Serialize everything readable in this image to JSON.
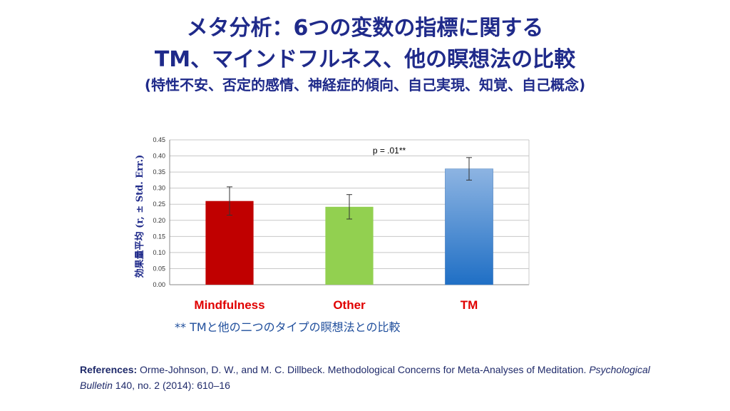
{
  "title": {
    "line1": "メタ分析：6つの変数の指標に関する",
    "line2": "TM、マインドフルネス、他の瞑想法の比較",
    "line3": "(特性不安、否定的感情、神経症的傾向、自己実現、知覚、自己概念)"
  },
  "chart_data": {
    "type": "bar",
    "categories": [
      "Mindfulness",
      "Other",
      "TM"
    ],
    "values": [
      0.26,
      0.242,
      0.36
    ],
    "errors": [
      0.044,
      0.038,
      0.035
    ],
    "bar_colors": [
      "#c00000",
      "#92d050",
      "#5b9bd5"
    ],
    "category_label_colors": [
      "#e00000",
      "#e00000",
      "#e00000"
    ],
    "ylabel": "効果量平均 (r, ± Std. Err.)",
    "ylim": [
      0,
      0.45
    ],
    "yticks": [
      "0.00",
      "0.05",
      "0.10",
      "0.15",
      "0.20",
      "0.25",
      "0.30",
      "0.35",
      "0.40",
      "0.45"
    ],
    "grid": true,
    "annotation": "p = .01**"
  },
  "footnote": "** TMと他の二つのタイプの瞑想法との比較",
  "references": {
    "label": "References:",
    "text1": " Orme-Johnson, D. W., and M. C. Dillbeck. Methodological Concerns for Meta-Analyses of Meditation. ",
    "journal": "Psychological Bulletin",
    "text2": " 140, no. 2 (2014): 610–16"
  }
}
